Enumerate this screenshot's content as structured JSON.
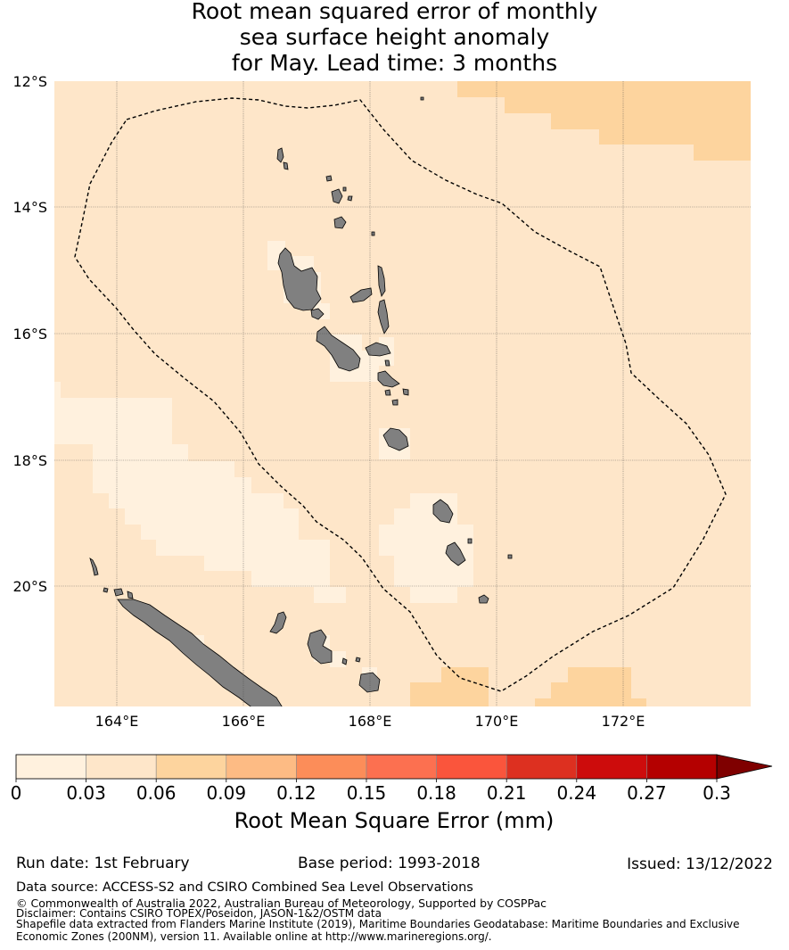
{
  "title": {
    "line1": "Root mean squared error of monthly",
    "line2": "sea surface height anomaly",
    "line3": "for May. Lead time: 3 months"
  },
  "map": {
    "lat_labels": [
      "12°S",
      "14°S",
      "16°S",
      "18°S",
      "20°S"
    ],
    "lon_labels": [
      "164°E",
      "166°E",
      "168°E",
      "170°E",
      "172°E"
    ],
    "extent": {
      "lon_min": 163,
      "lon_max": 174,
      "lat_min": -21.9,
      "lat_max": -12
    },
    "boundary_style": "dashed",
    "land_color": "#808080",
    "grid": true
  },
  "colorbar": {
    "label": "Root Mean Square Error (mm)",
    "ticks": [
      "0",
      "0.03",
      "0.06",
      "0.09",
      "0.12",
      "0.15",
      "0.18",
      "0.21",
      "0.24",
      "0.27",
      "0.3"
    ],
    "colors": [
      "#fff1de",
      "#fee6c9",
      "#fdd49e",
      "#fdbb84",
      "#fc8d59",
      "#fc7050",
      "#fa553c",
      "#dd3020",
      "#cd0c0c",
      "#b40000"
    ],
    "extend_color": "#7f0000"
  },
  "footer": {
    "run_date": "Run date: 1st February",
    "base_period": "Base period: 1993-2018",
    "issued": "Issued: 13/12/2022",
    "data_source": "Data source: ACCESS-S2 and CSIRO Combined Sea Level Observations",
    "copyright": "© Commonwealth of Australia 2022, Australian Bureau of Meteorology, Supported by COSPPac",
    "disclaimer": "Disclaimer: Contains CSIRO TOPEX/Poseidon, JASON-1&2/OSTM data",
    "shapefile": "Shapefile data extracted from Flanders Marine Institute (2019), Maritime Boundaries Geodatabase: Maritime Boundaries and Exclusive Economic Zones (200NM), version 11. Available online at http://www.marineregions.org/."
  }
}
